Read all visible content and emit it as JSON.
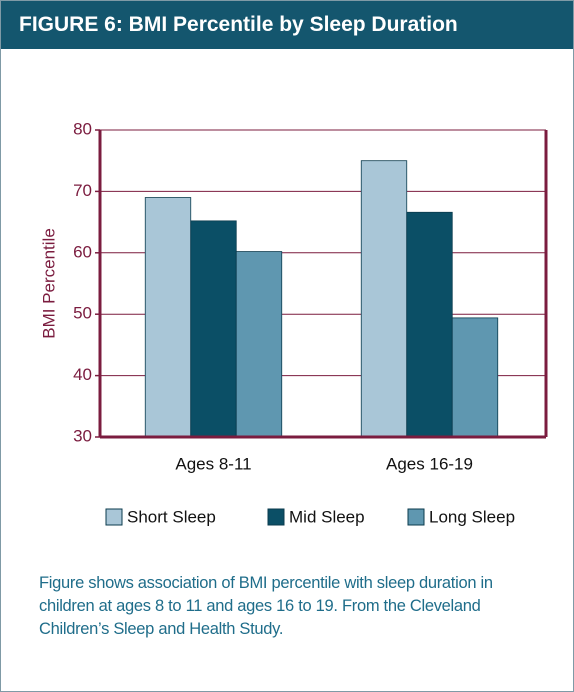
{
  "chart_data": {
    "type": "bar",
    "title": "FIGURE 6: BMI Percentile by Sleep Duration",
    "ylabel": "BMI Percentile",
    "categories": [
      "Ages 8-11",
      "Ages 16-19"
    ],
    "series": [
      {
        "name": "Short Sleep",
        "color": "#a9c6d7",
        "values": [
          69,
          75
        ]
      },
      {
        "name": "Mid Sleep",
        "color": "#0b4f66",
        "values": [
          65.2,
          66.6
        ]
      },
      {
        "name": "Long Sleep",
        "color": "#5f97b0",
        "values": [
          60.2,
          49.4
        ]
      }
    ],
    "ylim": [
      30,
      80
    ],
    "yticks": [
      30,
      40,
      50,
      60,
      70,
      80
    ],
    "grid": true,
    "axis_color": "#7b1c3f",
    "caption": "Figure shows association of BMI percentile with sleep duration in children at ages 8 to 11 and ages 16 to 19. From the Cleveland Children’s Sleep and Health Study."
  }
}
